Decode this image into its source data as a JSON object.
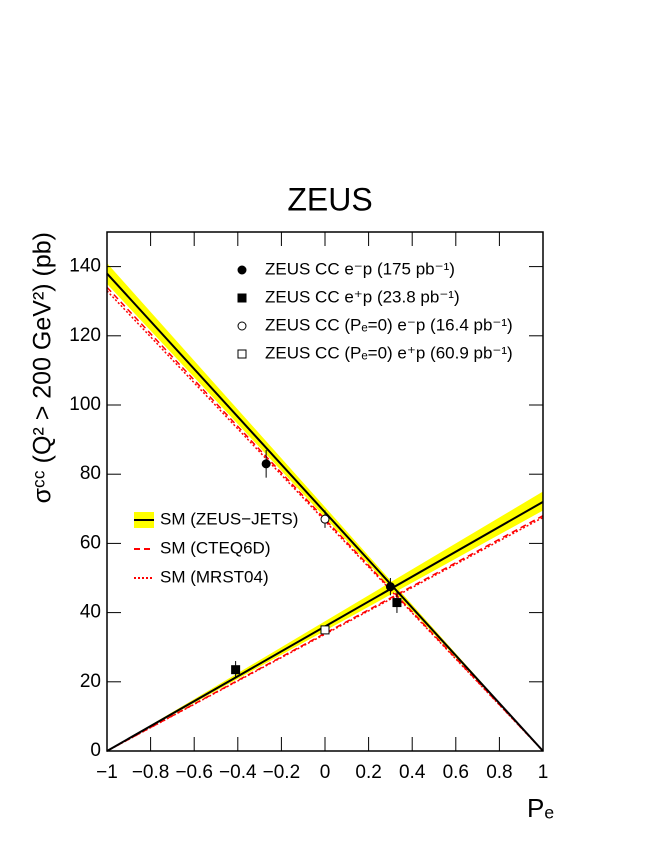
{
  "chart_data": {
    "type": "scatter",
    "title": "ZEUS",
    "x_label": "Pₑ",
    "y_label": "σᶜᶜ (Q² > 200 GeV²) (pb)",
    "xlim": [
      -1,
      1
    ],
    "ylim": [
      0,
      150
    ],
    "xticks": [
      {
        "value": -1,
        "label": "−1"
      },
      {
        "value": -0.8,
        "label": "−0.8"
      },
      {
        "value": -0.6,
        "label": "−0.6"
      },
      {
        "value": -0.4,
        "label": "−0.4"
      },
      {
        "value": -0.2,
        "label": "−0.2"
      },
      0,
      0.2,
      0.4,
      0.6,
      0.8,
      1
    ],
    "yticks": [
      0,
      20,
      40,
      60,
      80,
      100,
      120,
      140
    ],
    "series": [
      {
        "name": "ZEUS CC e⁻p (175 pb⁻¹)",
        "marker": "filled-circle",
        "x": [
          -0.27,
          0.3
        ],
        "values": [
          83,
          47.5
        ],
        "errors": [
          4,
          2.5
        ]
      },
      {
        "name": "ZEUS CC e⁺p (23.8 pb⁻¹)",
        "marker": "filled-square",
        "x": [
          -0.41,
          0.33
        ],
        "values": [
          23.5,
          42.9
        ],
        "errors": [
          2.5,
          3
        ]
      },
      {
        "name": "ZEUS CC (Pₑ=0) e⁻p (16.4 pb⁻¹)",
        "marker": "open-circle",
        "x": [
          0
        ],
        "values": [
          67
        ],
        "errors": [
          2.5
        ]
      },
      {
        "name": "ZEUS CC (Pₑ=0) e⁺p (60.9 pb⁻¹)",
        "marker": "open-square",
        "x": [
          0
        ],
        "values": [
          35
        ],
        "errors": [
          1
        ]
      }
    ],
    "models": [
      {
        "name": "SM (ZEUS−JETS)",
        "color": "#000000",
        "dash": "solid",
        "band_color": "#ffff00",
        "x": [
          -1,
          1
        ],
        "e_minus": [
          138,
          0
        ],
        "e_plus": [
          0,
          72
        ],
        "e_minus_low": [
          135,
          0
        ],
        "e_minus_high": [
          141,
          0
        ],
        "e_plus_low": [
          0,
          69.5
        ],
        "e_plus_high": [
          0,
          75
        ]
      },
      {
        "name": "SM (CTEQ6D)",
        "color": "#ff0000",
        "dash": "dashed",
        "x": [
          -1,
          1
        ],
        "e_minus": [
          134,
          0
        ],
        "e_plus": [
          0,
          68
        ]
      },
      {
        "name": "SM (MRST04)",
        "color": "#ff0000",
        "dash": "dotted",
        "x": [
          -1,
          1
        ],
        "e_minus": [
          133,
          0
        ],
        "e_plus": [
          0,
          67.5
        ]
      }
    ]
  }
}
